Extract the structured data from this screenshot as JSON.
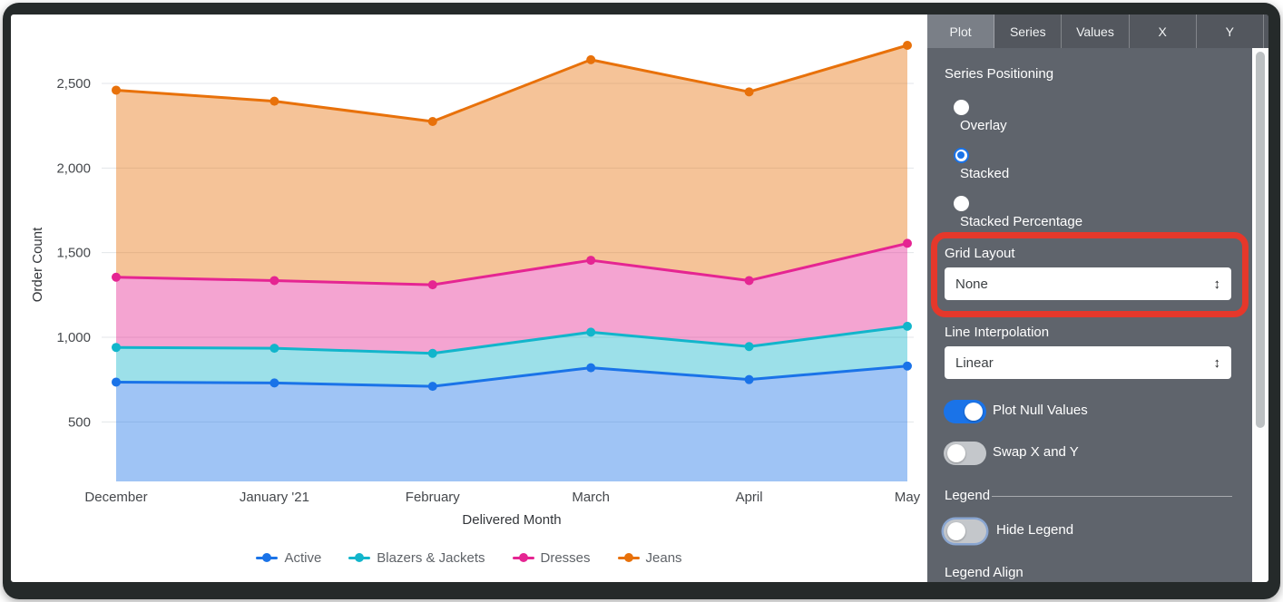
{
  "chart_data": {
    "type": "area",
    "stacking": "stacked",
    "title": "",
    "xlabel": "Delivered Month",
    "ylabel": "Order Count",
    "x": [
      "December",
      "January '21",
      "February",
      "March",
      "April",
      "May"
    ],
    "series": [
      {
        "name": "Active",
        "color": "#1A73E8",
        "values": [
          735,
          730,
          710,
          820,
          750,
          830
        ]
      },
      {
        "name": "Blazers & Jackets",
        "color": "#12B5CB",
        "values": [
          205,
          205,
          195,
          210,
          195,
          235
        ]
      },
      {
        "name": "Dresses",
        "color": "#E52592",
        "values": [
          415,
          400,
          405,
          425,
          390,
          490
        ]
      },
      {
        "name": "Jeans",
        "color": "#E8710A",
        "values": [
          1105,
          1060,
          965,
          1185,
          1115,
          1170
        ]
      }
    ],
    "stacked_totals": [
      {
        "name": "Active",
        "values": [
          735,
          730,
          710,
          820,
          750,
          830
        ]
      },
      {
        "name": "+ Blazers & Jackets",
        "values": [
          940,
          935,
          905,
          1030,
          945,
          1065
        ]
      },
      {
        "name": "+ Dresses",
        "values": [
          1355,
          1335,
          1310,
          1455,
          1335,
          1555
        ]
      },
      {
        "name": "+ Jeans",
        "values": [
          2460,
          2395,
          2275,
          2640,
          2450,
          2725
        ]
      }
    ],
    "y_ticks": [
      "500",
      "1,000",
      "1,500",
      "2,000",
      "2,500"
    ],
    "y_tick_values": [
      500,
      1000,
      1500,
      2000,
      2500
    ],
    "grid": true,
    "legend_position": "bottom"
  },
  "panel": {
    "tabs": [
      {
        "label": "Plot",
        "active": true
      },
      {
        "label": "Series",
        "active": false
      },
      {
        "label": "Values",
        "active": false
      },
      {
        "label": "X",
        "active": false
      },
      {
        "label": "Y",
        "active": false
      }
    ],
    "series_positioning": {
      "label": "Series Positioning",
      "options": [
        {
          "label": "Overlay",
          "selected": false
        },
        {
          "label": "Stacked",
          "selected": true
        },
        {
          "label": "Stacked Percentage",
          "selected": false
        }
      ]
    },
    "grid_layout": {
      "label": "Grid Layout",
      "value": "None",
      "annotated": true
    },
    "line_interpolation": {
      "label": "Line Interpolation",
      "value": "Linear"
    },
    "toggles": [
      {
        "label": "Plot Null Values",
        "on": true,
        "focused": false
      },
      {
        "label": "Swap X and Y",
        "on": false,
        "focused": false
      }
    ],
    "legend_section": {
      "header": "Legend",
      "hide_legend": {
        "label": "Hide Legend",
        "on": false,
        "focused": true
      },
      "legend_align_label": "Legend Align"
    }
  },
  "icons": {
    "updown_arrow": "↕"
  },
  "colors": {
    "accent_blue": "#1A73E8",
    "annotation_red": "#E5382B",
    "panel_gray": "#5F646C",
    "tabbar_gray": "#53575E",
    "active_tab_gray": "#7A7F87"
  }
}
